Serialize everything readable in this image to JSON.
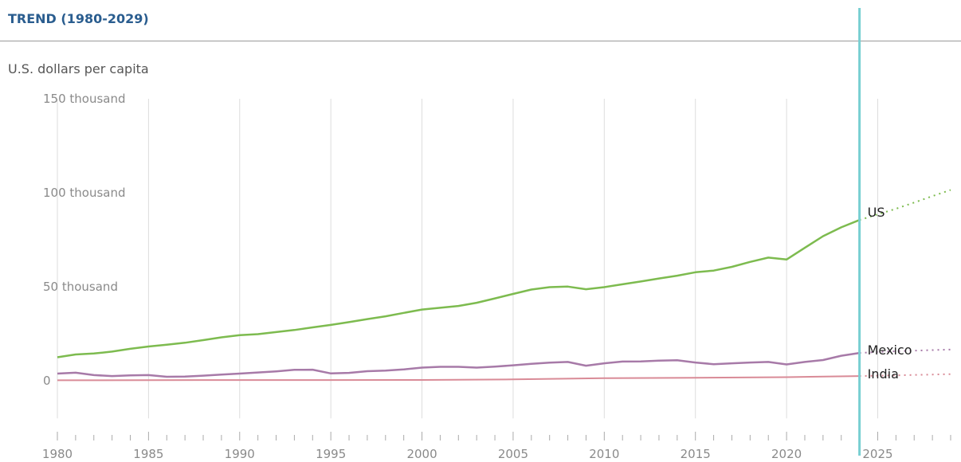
{
  "header": {
    "title": "TREND (1980-2029)",
    "subtitle": "U.S. dollars per capita"
  },
  "chart_data": {
    "type": "line",
    "ylim": [
      -20000,
      150000
    ],
    "xlim": [
      1980,
      2029
    ],
    "grid": true,
    "current_year_marker": 2024,
    "y_ticks": [
      {
        "value": 150000,
        "label": "150 thousand"
      },
      {
        "value": 100000,
        "label": "100 thousand"
      },
      {
        "value": 50000,
        "label": "50 thousand"
      },
      {
        "value": 0,
        "label": "0"
      }
    ],
    "x_tick_labels": [
      1980,
      1985,
      1990,
      1995,
      2000,
      2005,
      2010,
      2015,
      2020,
      2025
    ],
    "colors": {
      "US": "#7dbb4f",
      "Mexico": "#a77aa8",
      "India": "#d98b97",
      "marker": "#78cfd2",
      "grid": "#dddddd"
    },
    "series": [
      {
        "name": "US",
        "x": [
          1980,
          1981,
          1982,
          1983,
          1984,
          1985,
          1986,
          1987,
          1988,
          1989,
          1990,
          1991,
          1992,
          1993,
          1994,
          1995,
          1996,
          1997,
          1998,
          1999,
          2000,
          2001,
          2002,
          2003,
          2004,
          2005,
          2006,
          2007,
          2008,
          2009,
          2010,
          2011,
          2012,
          2013,
          2014,
          2015,
          2016,
          2017,
          2018,
          2019,
          2020,
          2021,
          2022,
          2023,
          2024
        ],
        "values": [
          12500,
          14000,
          14500,
          15500,
          17000,
          18200,
          19200,
          20200,
          21600,
          23100,
          24300,
          24800,
          25900,
          27000,
          28400,
          29700,
          31200,
          32800,
          34300,
          36100,
          37900,
          38800,
          39800,
          41500,
          43800,
          46200,
          48500,
          49800,
          50100,
          48700,
          49800,
          51300,
          52800,
          54400,
          55900,
          57700,
          58600,
          60600,
          63200,
          65500,
          64500,
          70700,
          76900,
          81600,
          85500
        ],
        "projection_x": [
          2024,
          2025,
          2026,
          2027,
          2028,
          2029
        ],
        "projection_values": [
          85500,
          88500,
          91500,
          94800,
          98200,
          101500
        ]
      },
      {
        "name": "Mexico",
        "x": [
          1980,
          1981,
          1982,
          1983,
          1984,
          1985,
          1986,
          1987,
          1988,
          1989,
          1990,
          1991,
          1992,
          1993,
          1994,
          1995,
          1996,
          1997,
          1998,
          1999,
          2000,
          2001,
          2002,
          2003,
          2004,
          2005,
          2006,
          2007,
          2008,
          2009,
          2010,
          2011,
          2012,
          2013,
          2014,
          2015,
          2016,
          2017,
          2018,
          2019,
          2020,
          2021,
          2022,
          2023,
          2024
        ],
        "values": [
          3800,
          4300,
          3000,
          2500,
          2900,
          3000,
          2100,
          2200,
          2700,
          3300,
          3800,
          4400,
          5000,
          5800,
          5900,
          3900,
          4200,
          5100,
          5400,
          6000,
          7000,
          7400,
          7400,
          7000,
          7500,
          8200,
          9000,
          9600,
          10000,
          8000,
          9300,
          10200,
          10300,
          10700,
          10900,
          9700,
          8800,
          9300,
          9700,
          10000,
          8700,
          10000,
          11000,
          13300,
          14800
        ],
        "projection_x": [
          2024,
          2025,
          2026,
          2027,
          2028,
          2029
        ],
        "projection_values": [
          14800,
          15300,
          15700,
          16000,
          16300,
          16600
        ]
      },
      {
        "name": "India",
        "x": [
          1980,
          1985,
          1990,
          1995,
          2000,
          2005,
          2010,
          2015,
          2020,
          2024
        ],
        "values": [
          270,
          300,
          370,
          380,
          440,
          710,
          1350,
          1590,
          1910,
          2500
        ],
        "projection_x": [
          2024,
          2025,
          2026,
          2027,
          2028,
          2029
        ],
        "projection_values": [
          2500,
          2700,
          2900,
          3100,
          3300,
          3500
        ]
      }
    ]
  }
}
